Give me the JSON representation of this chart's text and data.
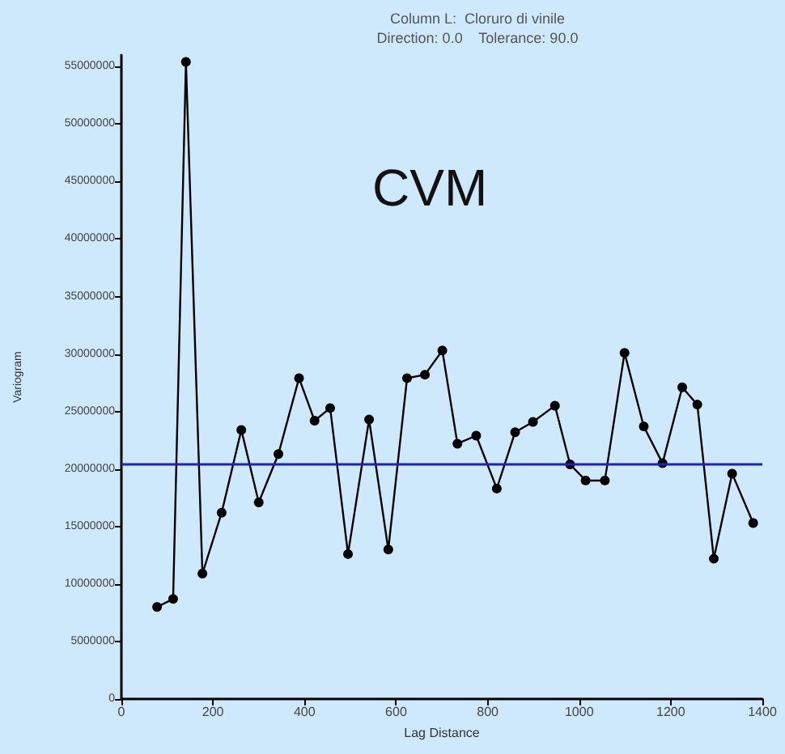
{
  "chart_data": {
    "type": "line",
    "title": "Column L:  Cloruro di vinile",
    "subtitle": "Direction: 0.0    Tolerance: 90.0",
    "xlabel": "Lag Distance",
    "ylabel": "Variogram",
    "annotations": [
      "CVM"
    ],
    "series": [
      {
        "color": "#000000",
        "x": [
          78,
          113,
          141,
          177,
          219,
          262,
          300,
          343,
          388,
          422,
          456,
          495,
          541,
          583,
          624,
          663,
          701,
          734,
          775,
          820,
          860,
          899,
          947,
          980,
          1014,
          1056,
          1099,
          1141,
          1182,
          1225,
          1258,
          1294,
          1334,
          1380
        ],
        "values": [
          8000000,
          8700000,
          55400000,
          10900000,
          16200000,
          23400000,
          17100000,
          21300000,
          27900000,
          24200000,
          25300000,
          12600000,
          24300000,
          13000000,
          27900000,
          28200000,
          30300000,
          22200000,
          22900000,
          18300000,
          23200000,
          24100000,
          25500000,
          20400000,
          19000000,
          19000000,
          30100000,
          23700000,
          20500000,
          27100000,
          25600000,
          12200000,
          19600000,
          15300000
        ]
      }
    ],
    "xlim": [
      0,
      1400
    ],
    "xticks": [
      0,
      200,
      400,
      600,
      800,
      1000,
      1200,
      1400
    ],
    "ylim": [
      0,
      56000000
    ],
    "yticks": [
      0,
      5000000,
      10000000,
      15000000,
      20000000,
      25000000,
      30000000,
      35000000,
      40000000,
      45000000,
      50000000,
      55000000
    ],
    "ref_lines": [
      {
        "axis": "y",
        "value": 20400000,
        "color": "#2020c0"
      }
    ],
    "grid": false,
    "marker": "circle",
    "line_style": "solid"
  }
}
